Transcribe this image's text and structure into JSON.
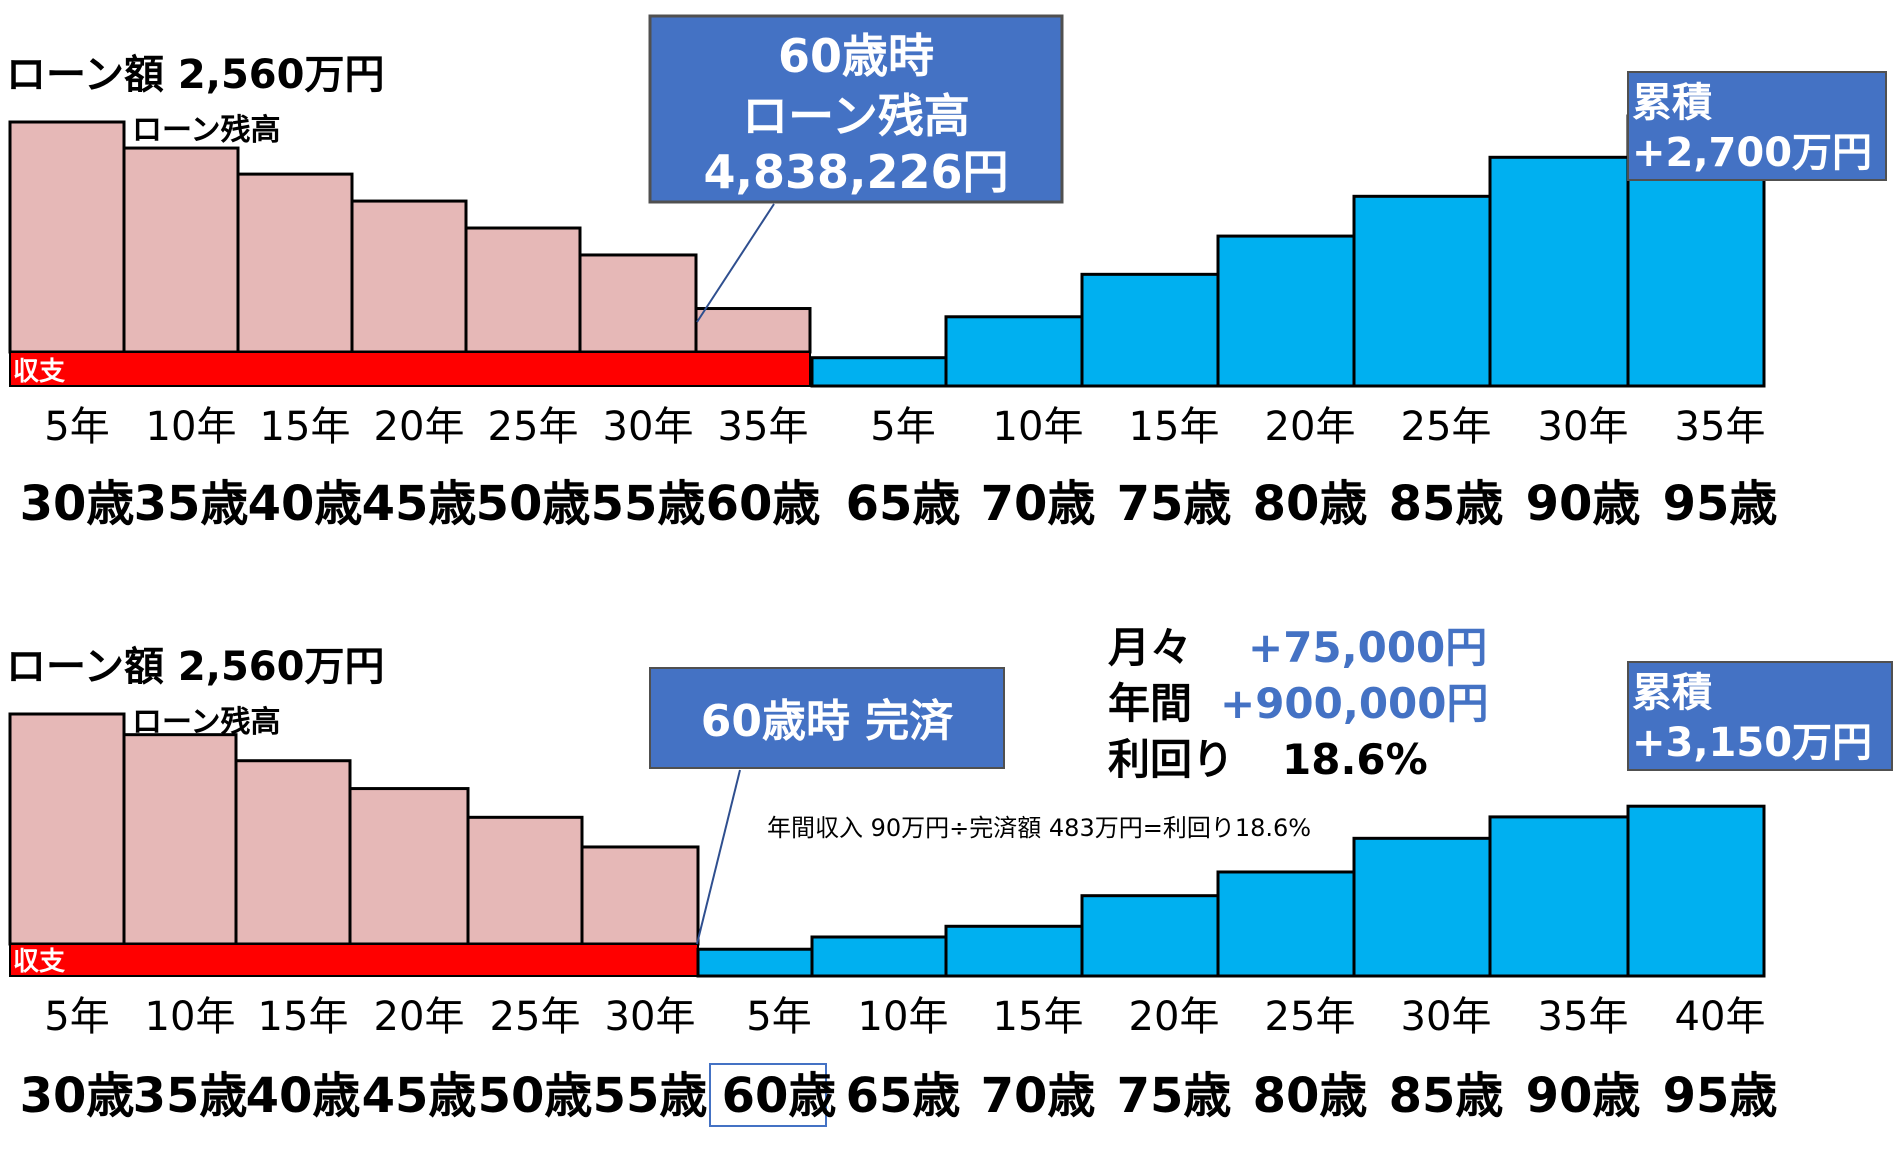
{
  "chart_data": [
    {
      "type": "bar",
      "title": "ローン額 2,560万円",
      "loan_series_label": "ローン残高",
      "cashflow_label": "収支",
      "callout": [
        "60歳時",
        "ローン残高",
        "4,838,226円"
      ],
      "cumulative_label": [
        "累積",
        "+2,700万円"
      ],
      "loan_years": [
        "5年",
        "10年",
        "15年",
        "20年",
        "25年",
        "30年",
        "35年"
      ],
      "loan_ages": [
        "30歳",
        "35歳",
        "40歳",
        "45歳",
        "50歳",
        "55歳",
        "60歳"
      ],
      "loan_balance": [
        2560,
        2270,
        1980,
        1680,
        1380,
        1080,
        484
      ],
      "post_years": [
        "5年",
        "10年",
        "15年",
        "20年",
        "25年",
        "30年",
        "35年"
      ],
      "post_ages": [
        "65歳",
        "70歳",
        "75歳",
        "80歳",
        "85歳",
        "90歳",
        "95歳"
      ],
      "cumulative": [
        370,
        905,
        1460,
        1960,
        2480,
        2990,
        3530
      ],
      "colors": {
        "loan": "#e6b8b7",
        "cashflow": "#ff0000",
        "cumulative": "#00b0f0",
        "callout": "#4472c4"
      }
    },
    {
      "type": "bar",
      "title": "ローン額 2,560万円",
      "loan_series_label": "ローン残高",
      "cashflow_label": "収支",
      "callout": [
        "60歳時 完済"
      ],
      "stats": [
        {
          "label": "月々",
          "value": "+75,000円"
        },
        {
          "label": "年間",
          "value": "+900,000円"
        },
        {
          "label": "利回り",
          "value": "18.6%"
        }
      ],
      "formula": "年間収入 90万円÷完済額 483万円=利回り18.6%",
      "cumulative_label": [
        "累積",
        "+3,150万円"
      ],
      "loan_years": [
        "5年",
        "10年",
        "15年",
        "20年",
        "25年",
        "30年"
      ],
      "loan_ages": [
        "30歳",
        "35歳",
        "40歳",
        "45歳",
        "50歳",
        "55歳"
      ],
      "loan_balance": [
        2560,
        2330,
        2040,
        1730,
        1410,
        1080
      ],
      "post_years": [
        "5年",
        "10年",
        "15年",
        "20年",
        "25年",
        "30年",
        "35年",
        "40年"
      ],
      "post_ages": [
        "60歳",
        "65歳",
        "70歳",
        "75歳",
        "80歳",
        "85歳",
        "90歳",
        "95歳"
      ],
      "cumulative": [
        350,
        510,
        650,
        1050,
        1360,
        1800,
        2080,
        2220
      ],
      "colors": {
        "loan": "#e6b8b7",
        "cashflow": "#ff0000",
        "cumulative": "#00b0f0",
        "callout": "#4472c4",
        "stats_value": "#4472c4"
      }
    }
  ]
}
